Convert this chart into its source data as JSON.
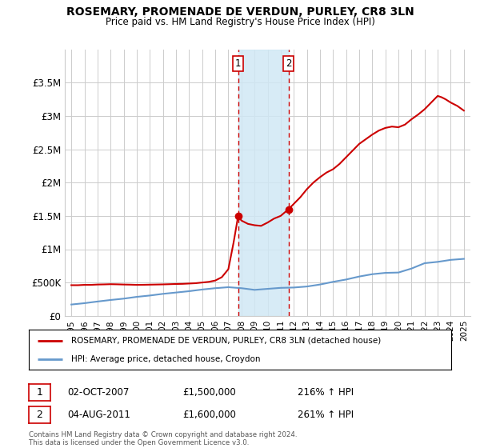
{
  "title": "ROSEMARY, PROMENADE DE VERDUN, PURLEY, CR8 3LN",
  "subtitle": "Price paid vs. HM Land Registry's House Price Index (HPI)",
  "legend_line1": "ROSEMARY, PROMENADE DE VERDUN, PURLEY, CR8 3LN (detached house)",
  "legend_line2": "HPI: Average price, detached house, Croydon",
  "footer": "Contains HM Land Registry data © Crown copyright and database right 2024.\nThis data is licensed under the Open Government Licence v3.0.",
  "sale1_date": "02-OCT-2007",
  "sale1_price": "£1,500,000",
  "sale1_hpi": "216% ↑ HPI",
  "sale1_year": 2007.75,
  "sale2_date": "04-AUG-2011",
  "sale2_price": "£1,600,000",
  "sale2_hpi": "261% ↑ HPI",
  "sale2_year": 2011.6,
  "ylim": [
    0,
    4000000
  ],
  "xlim": [
    1994.5,
    2025.5
  ],
  "yticks": [
    0,
    500000,
    1000000,
    1500000,
    2000000,
    2500000,
    3000000,
    3500000
  ],
  "ytick_labels": [
    "£0",
    "£500K",
    "£1M",
    "£1.5M",
    "£2M",
    "£2.5M",
    "£3M",
    "£3.5M"
  ],
  "xticks": [
    1995,
    1996,
    1997,
    1998,
    1999,
    2000,
    2001,
    2002,
    2003,
    2004,
    2005,
    2006,
    2007,
    2008,
    2009,
    2010,
    2011,
    2012,
    2013,
    2014,
    2015,
    2016,
    2017,
    2018,
    2019,
    2020,
    2021,
    2022,
    2023,
    2024,
    2025
  ],
  "red_line_color": "#cc0000",
  "blue_line_color": "#6699cc",
  "shade_color": "#d0e8f5",
  "grid_color": "#cccccc",
  "red_x": [
    1995.0,
    1995.5,
    1996.0,
    1996.5,
    1997.0,
    1997.5,
    1998.0,
    1998.5,
    1999.0,
    1999.5,
    2000.0,
    2000.5,
    2001.0,
    2001.5,
    2002.0,
    2002.5,
    2003.0,
    2003.5,
    2004.0,
    2004.5,
    2005.0,
    2005.5,
    2006.0,
    2006.5,
    2007.0,
    2007.4,
    2007.75,
    2008.0,
    2008.5,
    2009.0,
    2009.5,
    2010.0,
    2010.5,
    2011.0,
    2011.6,
    2012.0,
    2012.5,
    2013.0,
    2013.5,
    2014.0,
    2014.5,
    2015.0,
    2015.5,
    2016.0,
    2016.5,
    2017.0,
    2017.5,
    2018.0,
    2018.5,
    2019.0,
    2019.5,
    2020.0,
    2020.5,
    2021.0,
    2021.5,
    2022.0,
    2022.5,
    2023.0,
    2023.3,
    2023.6,
    2024.0,
    2024.5,
    2025.0
  ],
  "red_y": [
    460000,
    460000,
    465000,
    465000,
    470000,
    472000,
    475000,
    473000,
    470000,
    468000,
    465000,
    466000,
    468000,
    470000,
    472000,
    475000,
    478000,
    480000,
    485000,
    490000,
    500000,
    510000,
    530000,
    580000,
    700000,
    1100000,
    1500000,
    1430000,
    1380000,
    1360000,
    1350000,
    1400000,
    1460000,
    1500000,
    1600000,
    1680000,
    1780000,
    1900000,
    2000000,
    2080000,
    2150000,
    2200000,
    2280000,
    2380000,
    2480000,
    2580000,
    2650000,
    2720000,
    2780000,
    2820000,
    2840000,
    2830000,
    2870000,
    2950000,
    3020000,
    3100000,
    3200000,
    3300000,
    3280000,
    3250000,
    3200000,
    3150000,
    3080000
  ],
  "blue_x": [
    1995,
    1996,
    1997,
    1998,
    1999,
    2000,
    2001,
    2002,
    2003,
    2004,
    2005,
    2006,
    2007,
    2008,
    2009,
    2010,
    2011,
    2012,
    2013,
    2014,
    2015,
    2016,
    2017,
    2018,
    2019,
    2020,
    2021,
    2022,
    2023,
    2024,
    2025
  ],
  "blue_y": [
    170000,
    190000,
    215000,
    238000,
    258000,
    285000,
    305000,
    330000,
    350000,
    370000,
    395000,
    415000,
    430000,
    415000,
    390000,
    405000,
    420000,
    425000,
    440000,
    470000,
    510000,
    545000,
    590000,
    625000,
    645000,
    650000,
    710000,
    790000,
    810000,
    840000,
    855000
  ]
}
